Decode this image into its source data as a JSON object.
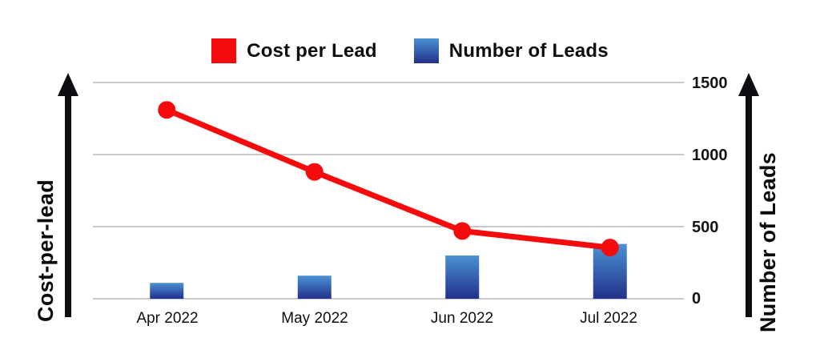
{
  "legend": {
    "items": [
      {
        "label": "Cost per Lead",
        "swatch_color": "#f50b0b"
      },
      {
        "label": "Number of Leads",
        "swatch_color_top": "#4a92d3",
        "swatch_color_bottom": "#22308a"
      }
    ]
  },
  "left_axis": {
    "title": "Cost-per-lead"
  },
  "right_axis": {
    "title": "Number of Leads",
    "ticks": [
      "1500",
      "1000",
      "500",
      "0"
    ]
  },
  "chart_data": {
    "type": "bar+line combo",
    "categories": [
      "Apr 2022",
      "May 2022",
      "Jun 2022",
      "Jul 2022"
    ],
    "series": [
      {
        "name": "Cost per Lead",
        "type": "line",
        "color": "#f50b0b",
        "values": [
          1310,
          880,
          470,
          355
        ],
        "note": "left axis has no numeric scale; values read against right-axis gridlines"
      },
      {
        "name": "Number of Leads",
        "type": "bar",
        "color_top": "#4a92d3",
        "color_bottom": "#22308a",
        "values": [
          110,
          160,
          300,
          380
        ]
      }
    ],
    "right_ylim": [
      0,
      1500
    ],
    "right_tick_values": [
      0,
      500,
      1000,
      1500
    ],
    "grid": true,
    "grid_color": "#c9c9c9",
    "axis_arrow_color": "#0d0d12",
    "legend_position": "top-center"
  }
}
